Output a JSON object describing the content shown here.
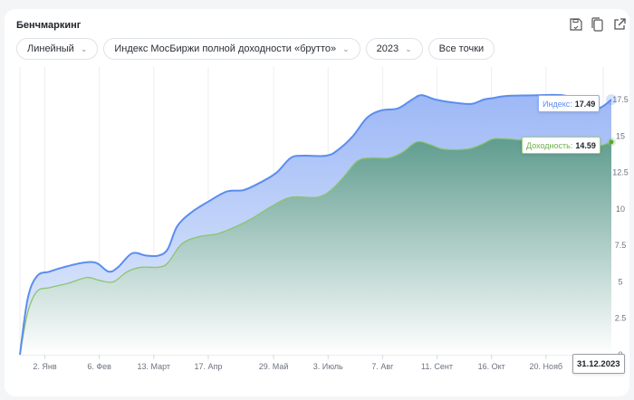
{
  "header": {
    "title": "Бенчмаркинг"
  },
  "toolbar": {
    "icons": [
      "save-icon",
      "copy-icon",
      "external-link-icon"
    ]
  },
  "controls": {
    "scale": "Линейный",
    "index": "Индекс МосБиржи полной доходности «брутто»",
    "year": "2023",
    "points": "Все точки"
  },
  "tooltips": {
    "index_label": "Индекс:",
    "index_value": "17.49",
    "yield_label": "Доходность:",
    "yield_value": "14.59",
    "date": "31.12.2023"
  },
  "colors": {
    "index": "#5b8def",
    "yield": "#8cc56f",
    "yield_fill": "#5f9c8f"
  },
  "chart_data": {
    "type": "area",
    "title": "Бенчмаркинг",
    "xlabel": "",
    "ylabel": "",
    "ylim": [
      0,
      17.5
    ],
    "yticks": [
      "0",
      "2.5",
      "5",
      "7.5",
      "10",
      "12.5",
      "15",
      "17.5"
    ],
    "ytick_values": [
      0,
      2.5,
      5,
      7.5,
      10,
      12.5,
      15,
      17.5
    ],
    "xlim": [
      -15,
      365
    ],
    "xticks": [
      {
        "label": "2. Янв",
        "day": 1
      },
      {
        "label": "6. Фев",
        "day": 36
      },
      {
        "label": "13. Март",
        "day": 71
      },
      {
        "label": "17. Апр",
        "day": 106
      },
      {
        "label": "29. Май",
        "day": 148
      },
      {
        "label": "3. Июль",
        "day": 183
      },
      {
        "label": "7. Авг",
        "day": 218
      },
      {
        "label": "11. Сент",
        "day": 253
      },
      {
        "label": "16. Окт",
        "day": 288
      },
      {
        "label": "20. Нояб",
        "day": 323
      }
    ],
    "grid": true,
    "series": [
      {
        "name": "Индекс",
        "x": [
          -15,
          -10,
          -4,
          4,
          13,
          25,
          34,
          42,
          48,
          57,
          66,
          74,
          80,
          86,
          95,
          106,
          118,
          129,
          141,
          150,
          159,
          167,
          182,
          190,
          199,
          208,
          217,
          228,
          237,
          243,
          252,
          263,
          275,
          283,
          289,
          298,
          321,
          333,
          345,
          356,
          365
        ],
        "values": [
          0,
          3.85,
          5.4,
          5.7,
          6.0,
          6.3,
          6.3,
          5.7,
          6.0,
          6.95,
          6.8,
          6.8,
          7.25,
          8.8,
          9.75,
          10.5,
          11.2,
          11.3,
          11.9,
          12.5,
          13.5,
          13.65,
          13.65,
          14.1,
          15.0,
          16.25,
          16.75,
          16.9,
          17.5,
          17.8,
          17.5,
          17.3,
          17.2,
          17.5,
          17.6,
          17.75,
          17.8,
          17.8,
          17.5,
          16.9,
          17.49
        ]
      },
      {
        "name": "Доходность",
        "x": [
          -15,
          -10,
          -4,
          4,
          16,
          28,
          36,
          45,
          54,
          63,
          74,
          80,
          89,
          100,
          112,
          124,
          135,
          147,
          159,
          176,
          185,
          193,
          202,
          211,
          222,
          231,
          240,
          249,
          257,
          272,
          281,
          289,
          298,
          310,
          321,
          333,
          345,
          356,
          365
        ],
        "values": [
          0,
          2.9,
          4.35,
          4.6,
          4.9,
          5.3,
          5.1,
          5.0,
          5.7,
          6.0,
          6.0,
          6.3,
          7.6,
          8.1,
          8.3,
          8.8,
          9.4,
          10.2,
          10.8,
          10.8,
          11.3,
          12.2,
          13.3,
          13.5,
          13.5,
          13.9,
          14.6,
          14.4,
          14.1,
          14.1,
          14.4,
          14.8,
          14.8,
          14.7,
          14.6,
          14.7,
          14.4,
          14.3,
          14.59
        ]
      }
    ]
  }
}
